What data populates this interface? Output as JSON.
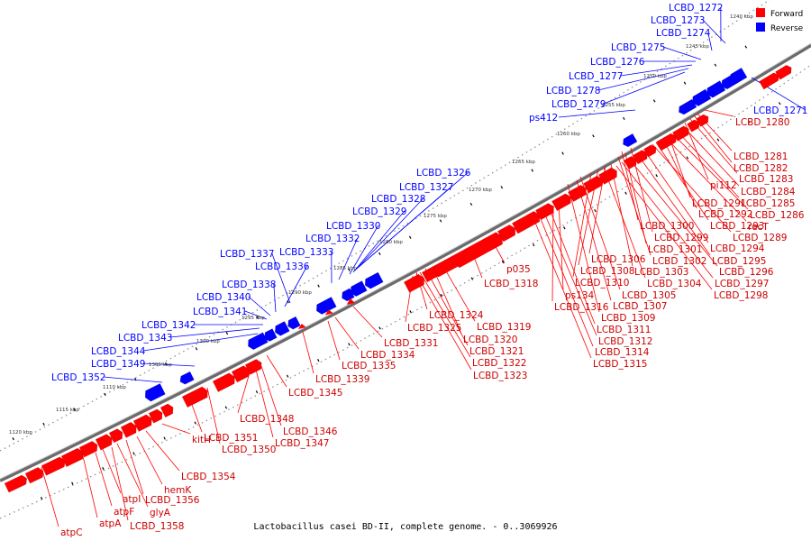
{
  "caption": "Lactobacillus casei BD-II, complete genome. - 0..3069926",
  "legend": [
    {
      "label": "Forward",
      "color": "#ff0000"
    },
    {
      "label": "Reverse",
      "color": "#0000ff"
    }
  ],
  "colors": {
    "forward": "#ff0000",
    "reverse": "#0000ff",
    "backbone": "#808080"
  },
  "ticks": [
    {
      "label": "1120 kbp"
    },
    {
      "label": "1115 kbp"
    },
    {
      "label": "1110 kbp"
    },
    {
      "label": "1305 kbp"
    },
    {
      "label": "1300 kbp"
    },
    {
      "label": "1295 kbp"
    },
    {
      "label": "1290 kbp"
    },
    {
      "label": "1285 kbp"
    },
    {
      "label": "1280 kbp"
    },
    {
      "label": "1275 kbp"
    },
    {
      "label": "1270 kbp"
    },
    {
      "label": "1265 kbp"
    },
    {
      "label": "1260 kbp"
    },
    {
      "label": "1255 kbp"
    },
    {
      "label": "1250 kbp"
    },
    {
      "label": "1245 kbp"
    },
    {
      "label": "1240 kbp"
    }
  ],
  "reverse_labels": [
    {
      "text": "LCBD_1272"
    },
    {
      "text": "LCBD_1273"
    },
    {
      "text": "LCBD_1274"
    },
    {
      "text": "LCBD_1275"
    },
    {
      "text": "LCBD_1276"
    },
    {
      "text": "LCBD_1277"
    },
    {
      "text": "LCBD_1278"
    },
    {
      "text": "LCBD_1279"
    },
    {
      "text": "ps412"
    },
    {
      "text": "LCBD_1271"
    },
    {
      "text": "LCBD_1326"
    },
    {
      "text": "LCBD_1327"
    },
    {
      "text": "LCBD_1328"
    },
    {
      "text": "LCBD_1329"
    },
    {
      "text": "LCBD_1330"
    },
    {
      "text": "LCBD_1332"
    },
    {
      "text": "LCBD_1333"
    },
    {
      "text": "LCBD_1337"
    },
    {
      "text": "LCBD_1336"
    },
    {
      "text": "LCBD_1338"
    },
    {
      "text": "LCBD_1340"
    },
    {
      "text": "LCBD_1341"
    },
    {
      "text": "LCBD_1342"
    },
    {
      "text": "LCBD_1343"
    },
    {
      "text": "LCBD_1344"
    },
    {
      "text": "LCBD_1349"
    },
    {
      "text": "LCBD_1352"
    }
  ],
  "forward_labels": [
    {
      "text": "LCBD_1280"
    },
    {
      "text": "LCBD_1281"
    },
    {
      "text": "LCBD_1282"
    },
    {
      "text": "pi112"
    },
    {
      "text": "LCBD_1283"
    },
    {
      "text": "LCBD_1284"
    },
    {
      "text": "LCBD_1291"
    },
    {
      "text": "LCBD_1285"
    },
    {
      "text": "LCBD_1292"
    },
    {
      "text": "LCBD_1286"
    },
    {
      "text": "LCBD_1293"
    },
    {
      "text": "recT"
    },
    {
      "text": "LCBD_1300"
    },
    {
      "text": "LCBD_1299"
    },
    {
      "text": "LCBD_1289"
    },
    {
      "text": "LCBD_1301"
    },
    {
      "text": "LCBD_1294"
    },
    {
      "text": "LCBD_1302"
    },
    {
      "text": "LCBD_1295"
    },
    {
      "text": "LCBD_1306"
    },
    {
      "text": "LCBD_1303"
    },
    {
      "text": "LCBD_1296"
    },
    {
      "text": "p035"
    },
    {
      "text": "LCBD_1308"
    },
    {
      "text": "LCBD_1304"
    },
    {
      "text": "LCBD_1297"
    },
    {
      "text": "LCBD_1318"
    },
    {
      "text": "LCBD_1310"
    },
    {
      "text": "LCBD_1298"
    },
    {
      "text": "ps134"
    },
    {
      "text": "LCBD_1305"
    },
    {
      "text": "LCBD_1316"
    },
    {
      "text": "LCBD_1307"
    },
    {
      "text": "LCBD_1324"
    },
    {
      "text": "LCBD_1309"
    },
    {
      "text": "LCBD_1325"
    },
    {
      "text": "LCBD_1319"
    },
    {
      "text": "LCBD_1311"
    },
    {
      "text": "LCBD_1331"
    },
    {
      "text": "LCBD_1320"
    },
    {
      "text": "LCBD_1312"
    },
    {
      "text": "LCBD_1334"
    },
    {
      "text": "LCBD_1321"
    },
    {
      "text": "LCBD_1314"
    },
    {
      "text": "LCBD_1335"
    },
    {
      "text": "LCBD_1322"
    },
    {
      "text": "LCBD_1315"
    },
    {
      "text": "LCBD_1339"
    },
    {
      "text": "LCBD_1323"
    },
    {
      "text": "LCBD_1345"
    },
    {
      "text": "LCBD_1348"
    },
    {
      "text": "LCBD_1346"
    },
    {
      "text": "LCBD_1351"
    },
    {
      "text": "LCBD_1347"
    },
    {
      "text": "LCBD_1350"
    },
    {
      "text": "kitH"
    },
    {
      "text": "LCBD_1354"
    },
    {
      "text": "hemK"
    },
    {
      "text": "atpI"
    },
    {
      "text": "LCBD_1356"
    },
    {
      "text": "atpF"
    },
    {
      "text": "glyA"
    },
    {
      "text": "atpA"
    },
    {
      "text": "LCBD_1358"
    },
    {
      "text": "atpC"
    }
  ]
}
